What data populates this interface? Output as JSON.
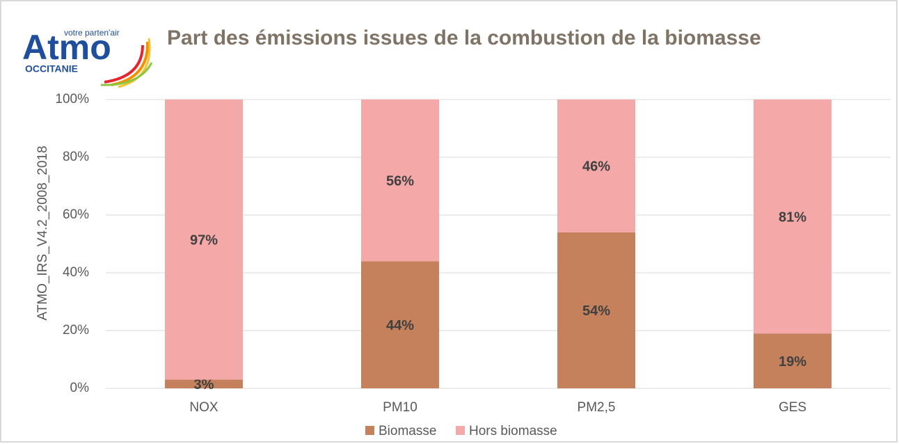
{
  "logo": {
    "name": "Atmo",
    "tagline": "votre parten'air",
    "region": "OCCITANIE"
  },
  "chart_data": {
    "type": "stacked_bar",
    "title": "Part des émissions issues de la combustion de la biomasse",
    "y_label": "ATMO_IRS_V4.2_2008_2018",
    "categories": [
      "NOX",
      "PM10",
      "PM2,5",
      "GES"
    ],
    "series": [
      {
        "name": "Biomasse",
        "color": "#c5815b",
        "values": [
          3,
          44,
          54,
          19
        ],
        "value_labels": [
          "3%",
          "44%",
          "54%",
          "19%"
        ]
      },
      {
        "name": "Hors biomasse",
        "color": "#f4a9a8",
        "values": [
          97,
          56,
          46,
          81
        ],
        "value_labels": [
          "97%",
          "56%",
          "46%",
          "81%"
        ]
      }
    ],
    "ylim": [
      0,
      100
    ],
    "yticks": [
      {
        "value": 0,
        "label": "0%"
      },
      {
        "value": 20,
        "label": "20%"
      },
      {
        "value": 40,
        "label": "40%"
      },
      {
        "value": 60,
        "label": "60%"
      },
      {
        "value": 80,
        "label": "80%"
      },
      {
        "value": 100,
        "label": "100%"
      }
    ],
    "grid": true,
    "legend": "bottom"
  }
}
